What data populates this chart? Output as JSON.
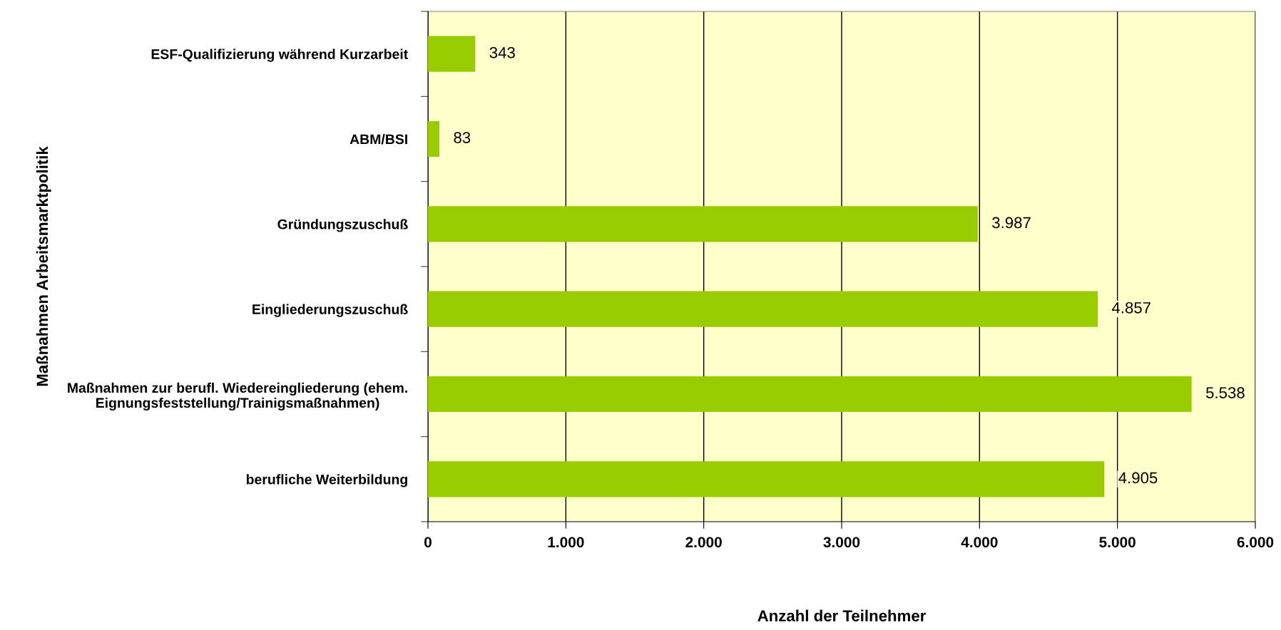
{
  "chart_data": {
    "type": "bar",
    "orientation": "horizontal",
    "categories": [
      "ESF-Qualifizierung während Kurzarbeit",
      "ABM/BSI",
      "Gründungszuschuß",
      "Eingliederungszuschuß",
      "Maßnahmen zur berufl. Wiedereingliederung (ehem.\nEignungsfeststellung/Trainigsmaßnahmen)",
      "berufliche Weiterbildung"
    ],
    "values": [
      343,
      83,
      3987,
      4857,
      5538,
      4905
    ],
    "value_labels": [
      "343",
      "83",
      "3.987",
      "4.857",
      "5.538",
      "4.905"
    ],
    "color": "#99cc00",
    "xlabel": "Anzahl der Teilnehmer",
    "ylabel": "Maßnahmen Arbeitsmarktpolitik",
    "xlim": [
      0,
      6000
    ],
    "xticks": [
      0,
      {
        "value": 1000,
        "label": "1.000"
      },
      {
        "value": 2000,
        "label": "2.000"
      },
      {
        "value": 3000,
        "label": "3.000"
      },
      {
        "value": 4000,
        "label": "4.000"
      },
      {
        "value": 5000,
        "label": "5.000"
      },
      {
        "value": 6000,
        "label": "6.000"
      }
    ],
    "grid": "x",
    "legend": false
  }
}
